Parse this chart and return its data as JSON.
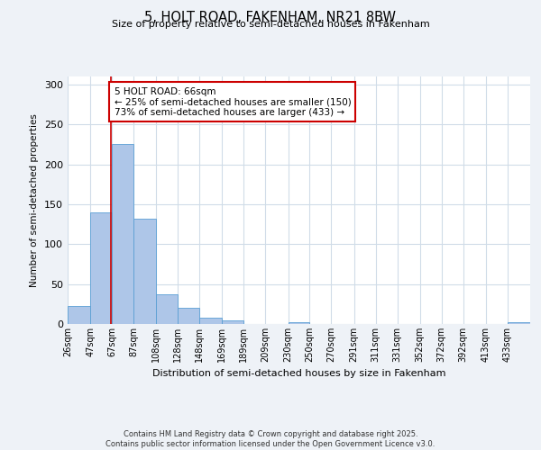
{
  "title": "5, HOLT ROAD, FAKENHAM, NR21 8BW",
  "subtitle": "Size of property relative to semi-detached houses in Fakenham",
  "xlabel": "Distribution of semi-detached houses by size in Fakenham",
  "ylabel": "Number of semi-detached properties",
  "bin_labels": [
    "26sqm",
    "47sqm",
    "67sqm",
    "87sqm",
    "108sqm",
    "128sqm",
    "148sqm",
    "169sqm",
    "189sqm",
    "209sqm",
    "230sqm",
    "250sqm",
    "270sqm",
    "291sqm",
    "311sqm",
    "331sqm",
    "352sqm",
    "372sqm",
    "392sqm",
    "413sqm",
    "433sqm"
  ],
  "bin_edges": [
    26,
    47,
    67,
    87,
    108,
    128,
    148,
    169,
    189,
    209,
    230,
    250,
    270,
    291,
    311,
    331,
    352,
    372,
    392,
    413,
    433
  ],
  "values": [
    22,
    140,
    225,
    132,
    37,
    20,
    8,
    4,
    0,
    0,
    2,
    0,
    0,
    0,
    0,
    0,
    0,
    0,
    0,
    0,
    2
  ],
  "bar_color": "#aec6e8",
  "bar_edge_color": "#5a9fd4",
  "property_size": 66,
  "property_label": "5 HOLT ROAD: 66sqm",
  "pct_smaller": 25,
  "n_smaller": 150,
  "pct_larger": 73,
  "n_larger": 433,
  "vline_color": "#cc0000",
  "annotation_box_edge_color": "#cc0000",
  "ylim": [
    0,
    310
  ],
  "yticks": [
    0,
    50,
    100,
    150,
    200,
    250,
    300
  ],
  "background_color": "#eef2f7",
  "plot_bg_color": "#ffffff",
  "grid_color": "#d0dce8",
  "footer_line1": "Contains HM Land Registry data © Crown copyright and database right 2025.",
  "footer_line2": "Contains public sector information licensed under the Open Government Licence v3.0."
}
